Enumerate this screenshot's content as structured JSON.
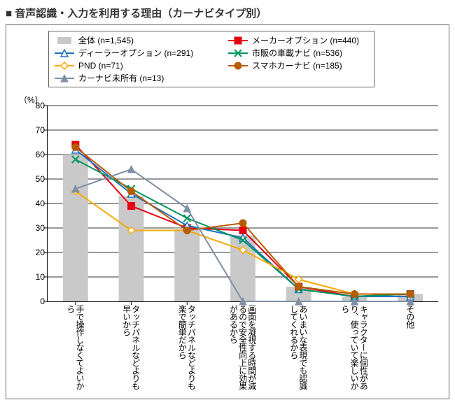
{
  "title": "■ 音声認識・入力を利用する理由（カーナビタイプ別）",
  "y_unit": "（%）",
  "chart": {
    "type": "bar+line",
    "background_color": "#ffffff",
    "grid_color": "#333333",
    "ylim": [
      0,
      80
    ],
    "ytick_step": 10,
    "categories": [
      "手で操作しなくてよいから",
      "タッチパネルなどよりも早いから",
      "タッチパネルなどよりも\n楽で簡単だから",
      "画面を凝視する時間が\n減るので安全性向上に\n効果があるから",
      "あいまいな表現でも\n認識してくれるから",
      "キャラクターに個性があり、\n使っていて楽しいから",
      "その他"
    ],
    "bar_series": {
      "name": "全体",
      "n": "(n=1,545)",
      "color": "#c9c9c9",
      "values": [
        60,
        43,
        30,
        27,
        6,
        2,
        3
      ]
    },
    "line_series": [
      {
        "name": "メーカーオプション",
        "n": "(n=440)",
        "color": "#e60012",
        "marker": "square",
        "values": [
          64,
          39,
          30,
          29,
          6,
          2,
          3
        ]
      },
      {
        "name": "ディーラーオプション",
        "n": "(n=291)",
        "color": "#1e72c2",
        "marker": "triangle",
        "values": [
          62,
          44,
          31,
          26,
          5,
          2,
          2
        ]
      },
      {
        "name": "市販の車載ナビ",
        "n": "(n=536)",
        "color": "#00955d",
        "marker": "x",
        "values": [
          58,
          46,
          34,
          25,
          5,
          2,
          3
        ]
      },
      {
        "name": "PND",
        "n": "(n=71)",
        "color": "#f7ab00",
        "marker": "diamond",
        "values": [
          45,
          29,
          29,
          21,
          9,
          3,
          3
        ]
      },
      {
        "name": "スマホカーナビ",
        "n": "(n=185)",
        "color": "#b85c00",
        "marker": "circle",
        "values": [
          63,
          45,
          29,
          32,
          6,
          3,
          3
        ]
      },
      {
        "name": "カーナビ未所有",
        "n": "(n=13)",
        "color": "#7e8fa6",
        "marker": "triangle-fill",
        "values": [
          46,
          54,
          38,
          0,
          0,
          0,
          0
        ]
      }
    ],
    "bar_width": 0.45,
    "label_fontsize": 12
  }
}
